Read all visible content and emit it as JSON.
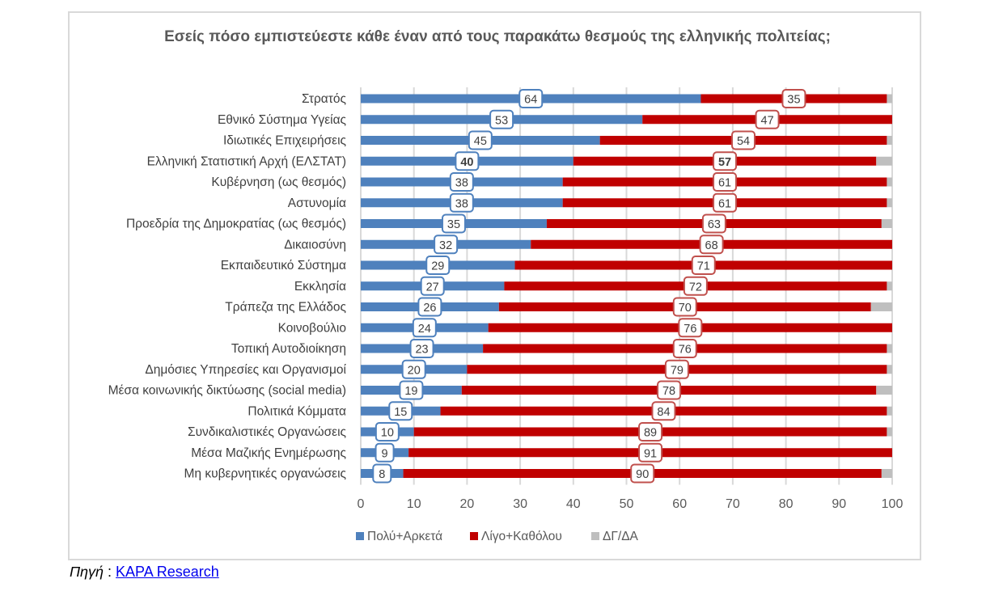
{
  "chart_data": {
    "type": "bar",
    "orientation": "horizontal",
    "stacked": true,
    "title": "Εσείς πόσο εμπιστεύεστε κάθε έναν από τους παρακάτω θεσμούς της ελληνικής πολιτείας;",
    "xlim": [
      0,
      100
    ],
    "xticks": [
      0,
      10,
      20,
      30,
      40,
      50,
      60,
      70,
      80,
      90,
      100
    ],
    "grid": true,
    "legend_position": "bottom",
    "categories": [
      "Στρατός",
      "Εθνικό Σύστημα Υγείας",
      "Ιδιωτικές Επιχειρήσεις",
      "Ελληνική Στατιστική Αρχή (ΕΛΣΤΑΤ)",
      "Κυβέρνηση (ως θεσμός)",
      "Αστυνομία",
      "Προεδρία της Δημοκρατίας (ως θεσμός)",
      "Δικαιοσύνη",
      "Εκπαιδευτικό Σύστημα",
      "Εκκλησία",
      "Τράπεζα της Ελλάδος",
      "Κοινοβούλιο",
      "Τοπική Αυτοδιοίκηση",
      "Δημόσιες Υπηρεσίες και Οργανισμοί",
      "Μέσα κοινωνικής δικτύωσης (social media)",
      "Πολιτικά Κόμματα",
      "Συνδικαλιστικές Οργανώσεις",
      "Μέσα Μαζικής Ενημέρωσης",
      "Μη κυβερνητικές οργανώσεις"
    ],
    "highlight_category": "Ελληνική Στατιστική Αρχή (ΕΛΣΤΑΤ)",
    "series": [
      {
        "name": "Πολύ+Αρκετά",
        "color": "#4f81bd",
        "values": [
          64,
          53,
          45,
          40,
          38,
          38,
          35,
          32,
          29,
          27,
          26,
          24,
          23,
          20,
          19,
          15,
          10,
          9,
          8
        ]
      },
      {
        "name": "Λίγο+Καθόλου",
        "color": "#c00000",
        "values": [
          35,
          47,
          54,
          57,
          61,
          61,
          63,
          68,
          71,
          72,
          70,
          76,
          76,
          79,
          78,
          84,
          89,
          91,
          90
        ]
      },
      {
        "name": "ΔΓ/ΔΑ",
        "color": "#bfbfbf",
        "values": [
          1,
          0,
          1,
          3,
          1,
          1,
          2,
          0,
          0,
          1,
          4,
          0,
          1,
          1,
          3,
          1,
          1,
          0,
          2
        ]
      }
    ]
  },
  "source": {
    "label": "Πηγή",
    "sep": " : ",
    "link": "KAPA Research"
  }
}
